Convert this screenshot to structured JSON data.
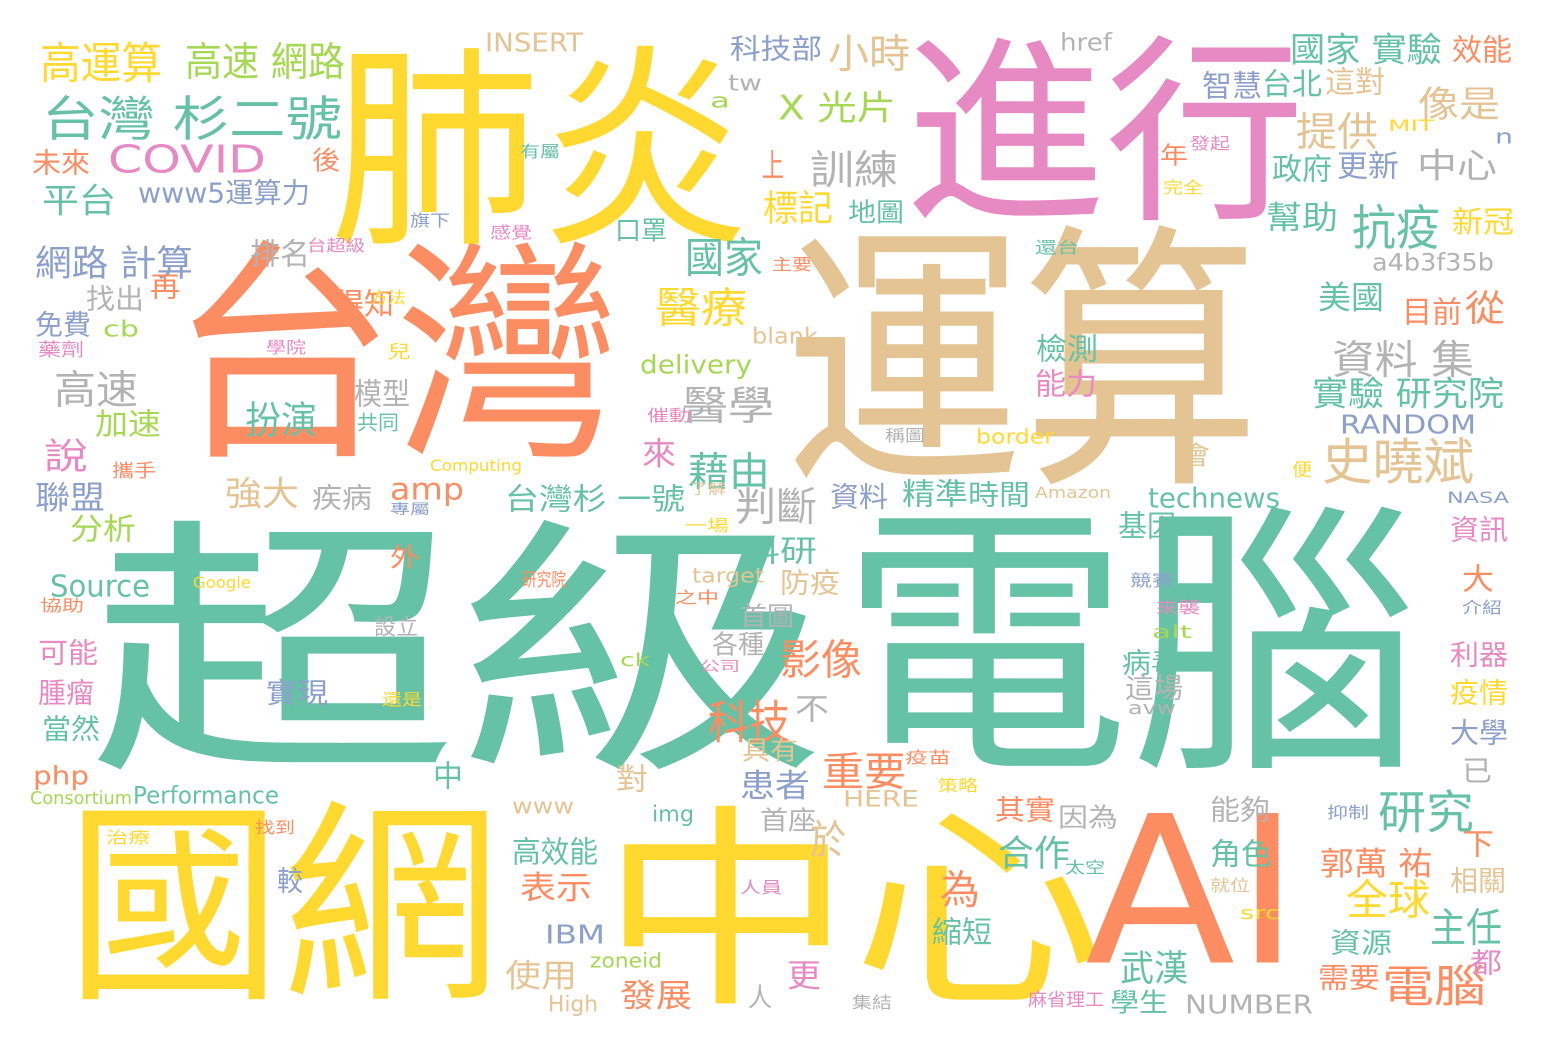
{
  "palette": {
    "green": "#66c2a5",
    "orange": "#fc8d62",
    "blue": "#8da0cb",
    "pink": "#e78ac3",
    "lime": "#a6d854",
    "yellow": "#ffd92f",
    "tan": "#e5c494",
    "gray": "#b3b3b3"
  },
  "words": [
    {
      "text": "超級",
      "color": "green"
    },
    {
      "text": "電腦",
      "color": "green"
    },
    {
      "text": "台灣",
      "color": "orange"
    },
    {
      "text": "運算",
      "color": "tan"
    },
    {
      "text": "肺炎",
      "color": "yellow"
    },
    {
      "text": "進行",
      "color": "pink"
    },
    {
      "text": "國網",
      "color": "yellow"
    },
    {
      "text": "中心",
      "color": "yellow"
    },
    {
      "text": "AI",
      "color": "orange"
    },
    {
      "text": "台灣 杉二號",
      "color": "green"
    },
    {
      "text": "COVID",
      "color": "pink"
    },
    {
      "text": "高運算",
      "color": "yellow"
    },
    {
      "text": "高速 網路",
      "color": "lime"
    },
    {
      "text": "小時",
      "color": "tan"
    },
    {
      "text": "X 光片",
      "color": "lime"
    },
    {
      "text": "史曉斌",
      "color": "tan"
    },
    {
      "text": "抗疫",
      "color": "green"
    },
    {
      "text": "國家",
      "color": "green"
    },
    {
      "text": "醫療",
      "color": "yellow"
    },
    {
      "text": "醫學",
      "color": "gray"
    },
    {
      "text": "資料 集",
      "color": "gray"
    },
    {
      "text": "實驗 研究院",
      "color": "green"
    },
    {
      "text": "國家 實驗",
      "color": "green"
    },
    {
      "text": "提供",
      "color": "tan"
    },
    {
      "text": "中心",
      "color": "gray"
    },
    {
      "text": "像是",
      "color": "tan"
    },
    {
      "text": "訓練",
      "color": "gray"
    },
    {
      "text": "標記",
      "color": "yellow"
    },
    {
      "text": "上",
      "color": "orange"
    },
    {
      "text": "網路 計算",
      "color": "blue"
    },
    {
      "text": "平台",
      "color": "green"
    },
    {
      "text": "未來",
      "color": "orange"
    },
    {
      "text": "www5運算力",
      "color": "blue"
    },
    {
      "text": "高速",
      "color": "gray"
    },
    {
      "text": "扮演",
      "color": "green"
    },
    {
      "text": "藉由",
      "color": "green"
    },
    {
      "text": "判斷",
      "color": "gray"
    },
    {
      "text": "台灣杉 一號",
      "color": "green"
    },
    {
      "text": "amp",
      "color": "orange"
    },
    {
      "text": "強大",
      "color": "tan"
    },
    {
      "text": "研究",
      "color": "green"
    },
    {
      "text": "電腦",
      "color": "orange"
    },
    {
      "text": "全球",
      "color": "yellow"
    },
    {
      "text": "郭萬 祐",
      "color": "orange"
    },
    {
      "text": "武漢",
      "color": "green"
    },
    {
      "text": "主任",
      "color": "green"
    },
    {
      "text": "科技",
      "color": "orange"
    },
    {
      "text": "影像",
      "color": "orange"
    },
    {
      "text": "重要",
      "color": "orange"
    },
    {
      "text": "於",
      "color": "tan"
    },
    {
      "text": "為",
      "color": "orange"
    },
    {
      "text": "合作",
      "color": "green"
    },
    {
      "text": "科技部",
      "color": "blue"
    },
    {
      "text": "INSERT",
      "color": "tan"
    },
    {
      "text": "href",
      "color": "gray"
    },
    {
      "text": "效能",
      "color": "orange"
    },
    {
      "text": "智慧",
      "color": "blue"
    },
    {
      "text": "台北",
      "color": "green"
    },
    {
      "text": "這對",
      "color": "tan"
    },
    {
      "text": "更新",
      "color": "blue"
    },
    {
      "text": "政府",
      "color": "green"
    },
    {
      "text": "幫助",
      "color": "green"
    },
    {
      "text": "新冠",
      "color": "yellow"
    },
    {
      "text": "a4b3f35b",
      "color": "gray"
    },
    {
      "text": "美國",
      "color": "green"
    },
    {
      "text": "從",
      "color": "orange"
    },
    {
      "text": "目前",
      "color": "orange"
    },
    {
      "text": "檢測",
      "color": "green"
    },
    {
      "text": "能力",
      "color": "pink"
    },
    {
      "text": "RANDOM",
      "color": "blue"
    },
    {
      "text": "technews",
      "color": "green"
    },
    {
      "text": "Source",
      "color": "green"
    },
    {
      "text": "分析",
      "color": "lime"
    },
    {
      "text": "聯盟",
      "color": "blue"
    },
    {
      "text": "說",
      "color": "pink"
    },
    {
      "text": "加速",
      "color": "lime"
    },
    {
      "text": "免費",
      "color": "blue"
    },
    {
      "text": "找出",
      "color": "gray"
    },
    {
      "text": "排名",
      "color": "gray"
    },
    {
      "text": "得知",
      "color": "orange"
    },
    {
      "text": "模型",
      "color": "gray"
    },
    {
      "text": "delivery",
      "color": "lime"
    },
    {
      "text": "疾病",
      "color": "gray"
    },
    {
      "text": "資料",
      "color": "blue"
    },
    {
      "text": "精準",
      "color": "green"
    },
    {
      "text": "時間",
      "color": "green"
    },
    {
      "text": "地圖",
      "color": "green"
    },
    {
      "text": "口罩",
      "color": "green"
    },
    {
      "text": "科研",
      "color": "green"
    },
    {
      "text": "防疫",
      "color": "tan"
    },
    {
      "text": "首圖",
      "color": "gray"
    },
    {
      "text": "各種",
      "color": "gray"
    },
    {
      "text": "基因",
      "color": "green"
    },
    {
      "text": "病毒",
      "color": "green"
    },
    {
      "text": "這場",
      "color": "gray"
    },
    {
      "text": "患者",
      "color": "blue"
    },
    {
      "text": "具有",
      "color": "tan"
    },
    {
      "text": "不",
      "color": "gray"
    },
    {
      "text": "對",
      "color": "tan"
    },
    {
      "text": "中",
      "color": "green"
    },
    {
      "text": "來",
      "color": "pink"
    },
    {
      "text": "實現",
      "color": "blue"
    },
    {
      "text": "可能",
      "color": "pink"
    },
    {
      "text": "腫瘤",
      "color": "pink"
    },
    {
      "text": "當然",
      "color": "green"
    },
    {
      "text": "php",
      "color": "orange"
    },
    {
      "text": "Performance",
      "color": "green"
    },
    {
      "text": "Consortium",
      "color": "lime"
    },
    {
      "text": "img",
      "color": "green"
    },
    {
      "text": "www",
      "color": "tan"
    },
    {
      "text": "HERE",
      "color": "tan"
    },
    {
      "text": "高效能",
      "color": "green"
    },
    {
      "text": "表示",
      "color": "orange"
    },
    {
      "text": "IBM",
      "color": "blue"
    },
    {
      "text": "使用",
      "color": "tan"
    },
    {
      "text": "發展",
      "color": "orange"
    },
    {
      "text": "zoneid",
      "color": "lime"
    },
    {
      "text": "High",
      "color": "tan"
    },
    {
      "text": "人",
      "color": "gray"
    },
    {
      "text": "更",
      "color": "pink"
    },
    {
      "text": "縮短",
      "color": "green"
    },
    {
      "text": "較",
      "color": "blue"
    },
    {
      "text": "首座",
      "color": "gray"
    },
    {
      "text": "其實",
      "color": "orange"
    },
    {
      "text": "因為",
      "color": "gray"
    },
    {
      "text": "能夠",
      "color": "gray"
    },
    {
      "text": "角色",
      "color": "green"
    },
    {
      "text": "相關",
      "color": "tan"
    },
    {
      "text": "資源",
      "color": "green"
    },
    {
      "text": "需要",
      "color": "orange"
    },
    {
      "text": "學生",
      "color": "green"
    },
    {
      "text": "NUMBER",
      "color": "gray"
    },
    {
      "text": "都",
      "color": "pink"
    },
    {
      "text": "下",
      "color": "orange"
    },
    {
      "text": "大學",
      "color": "blue"
    },
    {
      "text": "已",
      "color": "gray"
    },
    {
      "text": "疫情",
      "color": "yellow"
    },
    {
      "text": "利器",
      "color": "pink"
    },
    {
      "text": "資訊",
      "color": "pink"
    },
    {
      "text": "大",
      "color": "orange"
    },
    {
      "text": "會",
      "color": "tan"
    },
    {
      "text": "年",
      "color": "orange"
    },
    {
      "text": "後",
      "color": "orange"
    },
    {
      "text": "再",
      "color": "orange"
    },
    {
      "text": "cb",
      "color": "lime"
    },
    {
      "text": "外",
      "color": "orange"
    },
    {
      "text": "tw",
      "color": "gray"
    },
    {
      "text": "a",
      "color": "lime"
    },
    {
      "text": "n",
      "color": "blue"
    },
    {
      "text": "MIT",
      "color": "yellow"
    },
    {
      "text": "border",
      "color": "yellow"
    },
    {
      "text": "blank",
      "color": "tan"
    },
    {
      "text": "alt",
      "color": "lime"
    },
    {
      "text": "avw",
      "color": "gray"
    },
    {
      "text": "src",
      "color": "yellow"
    },
    {
      "text": "ck",
      "color": "lime"
    },
    {
      "text": "target",
      "color": "tan"
    },
    {
      "text": "Amazon",
      "color": "tan"
    },
    {
      "text": "NASA",
      "color": "blue"
    },
    {
      "text": "Computing",
      "color": "yellow"
    },
    {
      "text": "Google",
      "color": "yellow"
    },
    {
      "text": "設立",
      "color": "gray"
    },
    {
      "text": "共同",
      "color": "green"
    },
    {
      "text": "方法",
      "color": "yellow"
    },
    {
      "text": "旗下",
      "color": "blue"
    },
    {
      "text": "感覺",
      "color": "pink"
    },
    {
      "text": "台超級",
      "color": "pink"
    },
    {
      "text": "有屬",
      "color": "green"
    },
    {
      "text": "發起",
      "color": "pink"
    },
    {
      "text": "完全",
      "color": "yellow"
    },
    {
      "text": "主要",
      "color": "orange"
    },
    {
      "text": "還台",
      "color": "green"
    },
    {
      "text": "藥劑",
      "color": "pink"
    },
    {
      "text": "學院",
      "color": "pink"
    },
    {
      "text": "兒",
      "color": "yellow"
    },
    {
      "text": "催動",
      "color": "pink"
    },
    {
      "text": "稱圖",
      "color": "gray"
    },
    {
      "text": "攜手",
      "color": "orange"
    },
    {
      "text": "了解",
      "color": "tan"
    },
    {
      "text": "專屬",
      "color": "blue"
    },
    {
      "text": "一場",
      "color": "yellow"
    },
    {
      "text": "研究院",
      "color": "orange"
    },
    {
      "text": "之中",
      "color": "orange"
    },
    {
      "text": "協助",
      "color": "orange"
    },
    {
      "text": "公司",
      "color": "pink"
    },
    {
      "text": "還是",
      "color": "yellow"
    },
    {
      "text": "疫苗",
      "color": "orange"
    },
    {
      "text": "策略",
      "color": "yellow"
    },
    {
      "text": "治療",
      "color": "yellow"
    },
    {
      "text": "找到",
      "color": "orange"
    },
    {
      "text": "人員",
      "color": "pink"
    },
    {
      "text": "太空",
      "color": "green"
    },
    {
      "text": "就位",
      "color": "tan"
    },
    {
      "text": "競賽",
      "color": "blue"
    },
    {
      "text": "來襲",
      "color": "pink"
    },
    {
      "text": "便",
      "color": "yellow"
    },
    {
      "text": "抑制",
      "color": "blue"
    },
    {
      "text": "介紹",
      "color": "blue"
    },
    {
      "text": "麻省理工",
      "color": "pink"
    },
    {
      "text": "集結",
      "color": "gray"
    }
  ]
}
